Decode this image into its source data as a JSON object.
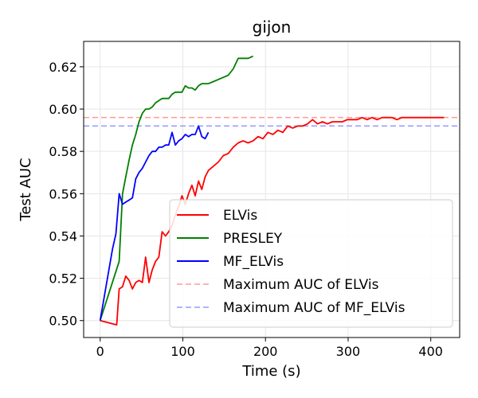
{
  "chart_data": {
    "type": "line",
    "title": "gijon",
    "xlabel": "Time (s)",
    "ylabel": "Test AUC",
    "xlim": [
      -20,
      435
    ],
    "ylim": [
      0.492,
      0.632
    ],
    "xticks": [
      0,
      100,
      200,
      300,
      400
    ],
    "yticks": [
      0.5,
      0.52,
      0.54,
      0.56,
      0.58,
      0.6,
      0.62
    ],
    "ytick_labels": [
      "0.50",
      "0.52",
      "0.54",
      "0.56",
      "0.58",
      "0.60",
      "0.62"
    ],
    "grid": true,
    "legend_position": "lower-right",
    "series": [
      {
        "name": "ELVis",
        "color": "#ff0000",
        "style": "solid",
        "points": [
          [
            0,
            0.5
          ],
          [
            20,
            0.498
          ],
          [
            23,
            0.515
          ],
          [
            27,
            0.516
          ],
          [
            31,
            0.521
          ],
          [
            35,
            0.519
          ],
          [
            39,
            0.515
          ],
          [
            43,
            0.518
          ],
          [
            47,
            0.519
          ],
          [
            51,
            0.518
          ],
          [
            55,
            0.53
          ],
          [
            59,
            0.518
          ],
          [
            63,
            0.524
          ],
          [
            67,
            0.528
          ],
          [
            71,
            0.53
          ],
          [
            75,
            0.542
          ],
          [
            79,
            0.54
          ],
          [
            83,
            0.542
          ],
          [
            87,
            0.545
          ],
          [
            91,
            0.55
          ],
          [
            95,
            0.554
          ],
          [
            99,
            0.559
          ],
          [
            103,
            0.555
          ],
          [
            107,
            0.56
          ],
          [
            111,
            0.564
          ],
          [
            115,
            0.559
          ],
          [
            119,
            0.566
          ],
          [
            123,
            0.562
          ],
          [
            127,
            0.568
          ],
          [
            131,
            0.571
          ],
          [
            137,
            0.573
          ],
          [
            143,
            0.575
          ],
          [
            149,
            0.578
          ],
          [
            155,
            0.579
          ],
          [
            161,
            0.582
          ],
          [
            167,
            0.584
          ],
          [
            173,
            0.585
          ],
          [
            179,
            0.584
          ],
          [
            185,
            0.585
          ],
          [
            191,
            0.587
          ],
          [
            197,
            0.586
          ],
          [
            203,
            0.589
          ],
          [
            209,
            0.588
          ],
          [
            215,
            0.59
          ],
          [
            221,
            0.589
          ],
          [
            227,
            0.592
          ],
          [
            233,
            0.591
          ],
          [
            239,
            0.592
          ],
          [
            245,
            0.592
          ],
          [
            251,
            0.593
          ],
          [
            257,
            0.595
          ],
          [
            263,
            0.593
          ],
          [
            269,
            0.594
          ],
          [
            275,
            0.593
          ],
          [
            281,
            0.594
          ],
          [
            287,
            0.594
          ],
          [
            293,
            0.594
          ],
          [
            299,
            0.595
          ],
          [
            305,
            0.595
          ],
          [
            311,
            0.595
          ],
          [
            317,
            0.596
          ],
          [
            323,
            0.595
          ],
          [
            329,
            0.596
          ],
          [
            335,
            0.595
          ],
          [
            341,
            0.596
          ],
          [
            347,
            0.596
          ],
          [
            353,
            0.596
          ],
          [
            359,
            0.595
          ],
          [
            365,
            0.596
          ],
          [
            371,
            0.596
          ],
          [
            377,
            0.596
          ],
          [
            383,
            0.596
          ],
          [
            389,
            0.596
          ],
          [
            395,
            0.596
          ],
          [
            401,
            0.596
          ],
          [
            407,
            0.596
          ],
          [
            416,
            0.596
          ]
        ]
      },
      {
        "name": "PRESLEY",
        "color": "#008000",
        "style": "solid",
        "points": [
          [
            0,
            0.5
          ],
          [
            23,
            0.528
          ],
          [
            27,
            0.56
          ],
          [
            31,
            0.568
          ],
          [
            35,
            0.576
          ],
          [
            39,
            0.583
          ],
          [
            43,
            0.588
          ],
          [
            47,
            0.594
          ],
          [
            51,
            0.598
          ],
          [
            55,
            0.6
          ],
          [
            59,
            0.6
          ],
          [
            63,
            0.601
          ],
          [
            67,
            0.603
          ],
          [
            71,
            0.604
          ],
          [
            75,
            0.605
          ],
          [
            79,
            0.605
          ],
          [
            83,
            0.605
          ],
          [
            87,
            0.607
          ],
          [
            91,
            0.608
          ],
          [
            95,
            0.608
          ],
          [
            99,
            0.608
          ],
          [
            103,
            0.611
          ],
          [
            107,
            0.61
          ],
          [
            111,
            0.61
          ],
          [
            115,
            0.609
          ],
          [
            119,
            0.611
          ],
          [
            123,
            0.612
          ],
          [
            127,
            0.612
          ],
          [
            131,
            0.612
          ],
          [
            137,
            0.613
          ],
          [
            143,
            0.614
          ],
          [
            149,
            0.615
          ],
          [
            155,
            0.616
          ],
          [
            161,
            0.619
          ],
          [
            167,
            0.624
          ],
          [
            173,
            0.624
          ],
          [
            179,
            0.624
          ],
          [
            185,
            0.625
          ]
        ]
      },
      {
        "name": "MF_ELVis",
        "color": "#0000ff",
        "style": "solid",
        "points": [
          [
            0,
            0.5
          ],
          [
            15,
            0.534
          ],
          [
            19,
            0.541
          ],
          [
            23,
            0.56
          ],
          [
            27,
            0.555
          ],
          [
            31,
            0.556
          ],
          [
            35,
            0.557
          ],
          [
            39,
            0.558
          ],
          [
            43,
            0.567
          ],
          [
            47,
            0.57
          ],
          [
            51,
            0.572
          ],
          [
            55,
            0.575
          ],
          [
            59,
            0.578
          ],
          [
            63,
            0.58
          ],
          [
            67,
            0.58
          ],
          [
            71,
            0.582
          ],
          [
            75,
            0.582
          ],
          [
            79,
            0.583
          ],
          [
            83,
            0.583
          ],
          [
            87,
            0.589
          ],
          [
            91,
            0.583
          ],
          [
            95,
            0.585
          ],
          [
            99,
            0.586
          ],
          [
            103,
            0.588
          ],
          [
            107,
            0.587
          ],
          [
            111,
            0.588
          ],
          [
            115,
            0.588
          ],
          [
            119,
            0.592
          ],
          [
            123,
            0.587
          ],
          [
            127,
            0.586
          ],
          [
            131,
            0.589
          ]
        ]
      },
      {
        "name": "Maximum AUC of ELVis",
        "color": "#ff9a9a",
        "style": "dashed",
        "y": 0.596
      },
      {
        "name": "Maximum AUC of MF_ELVis",
        "color": "#9a9aff",
        "style": "dashed",
        "y": 0.592
      }
    ]
  }
}
